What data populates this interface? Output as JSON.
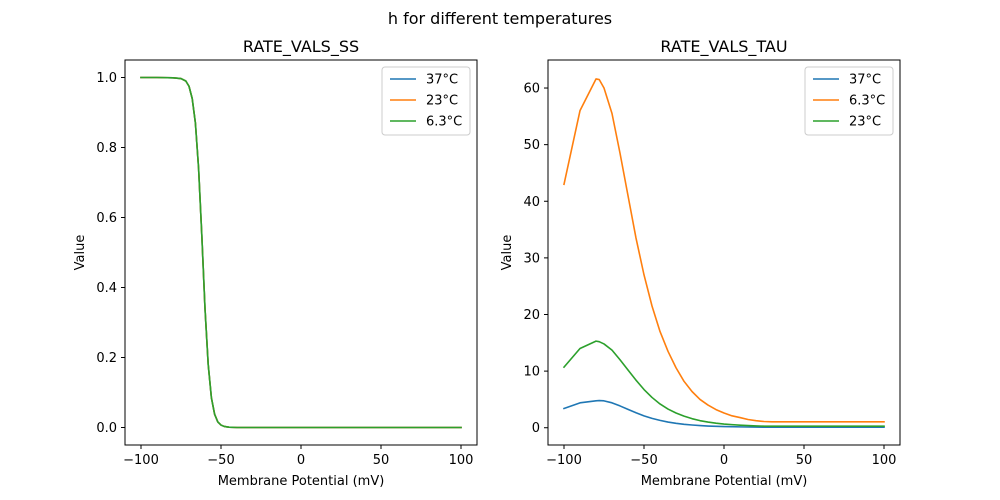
{
  "figure": {
    "suptitle": "h for different temperatures"
  },
  "colors": {
    "blue": "#1f77b4",
    "orange": "#ff7f0e",
    "green": "#2ca02c"
  },
  "chart_data": [
    {
      "type": "line",
      "title": "RATE_VALS_SS",
      "xlabel": "Membrane Potential (mV)",
      "ylabel": "Value",
      "xlim": [
        -110,
        110
      ],
      "ylim": [
        -0.05,
        1.05
      ],
      "xticks": [
        -100,
        -50,
        0,
        50,
        100
      ],
      "xticklabels": [
        "−100",
        "−50",
        "0",
        "50",
        "100"
      ],
      "yticks": [
        0.0,
        0.2,
        0.4,
        0.6,
        0.8,
        1.0
      ],
      "yticklabels": [
        "0.0",
        "0.2",
        "0.4",
        "0.6",
        "0.8",
        "1.0"
      ],
      "legend": "upper right",
      "grid": false,
      "series": [
        {
          "name": "37°C",
          "color": "#1f77b4",
          "x": [
            -100,
            -90,
            -80,
            -75,
            -72,
            -70,
            -68,
            -66,
            -64,
            -62,
            -60,
            -58,
            -56,
            -54,
            -52,
            -50,
            -48,
            -45,
            -40,
            -30,
            0,
            50,
            100
          ],
          "y": [
            1.0,
            1.0,
            0.999,
            0.997,
            0.99,
            0.975,
            0.94,
            0.87,
            0.74,
            0.55,
            0.34,
            0.18,
            0.085,
            0.038,
            0.016,
            0.007,
            0.003,
            0.001,
            0.0,
            0.0,
            0.0,
            0.0,
            0.0
          ]
        },
        {
          "name": "23°C",
          "color": "#ff7f0e",
          "x": [
            -100,
            -90,
            -80,
            -75,
            -72,
            -70,
            -68,
            -66,
            -64,
            -62,
            -60,
            -58,
            -56,
            -54,
            -52,
            -50,
            -48,
            -45,
            -40,
            -30,
            0,
            50,
            100
          ],
          "y": [
            1.0,
            1.0,
            0.999,
            0.997,
            0.99,
            0.975,
            0.94,
            0.87,
            0.74,
            0.55,
            0.34,
            0.18,
            0.085,
            0.038,
            0.016,
            0.007,
            0.003,
            0.001,
            0.0,
            0.0,
            0.0,
            0.0,
            0.0
          ]
        },
        {
          "name": "6.3°C",
          "color": "#2ca02c",
          "x": [
            -100,
            -90,
            -80,
            -75,
            -72,
            -70,
            -68,
            -66,
            -64,
            -62,
            -60,
            -58,
            -56,
            -54,
            -52,
            -50,
            -48,
            -45,
            -40,
            -30,
            0,
            50,
            100
          ],
          "y": [
            1.0,
            1.0,
            0.999,
            0.997,
            0.99,
            0.975,
            0.94,
            0.87,
            0.74,
            0.55,
            0.34,
            0.18,
            0.085,
            0.038,
            0.016,
            0.007,
            0.003,
            0.001,
            0.0,
            0.0,
            0.0,
            0.0,
            0.0
          ]
        }
      ]
    },
    {
      "type": "line",
      "title": "RATE_VALS_TAU",
      "xlabel": "Membrane Potential (mV)",
      "ylabel": "Value",
      "xlim": [
        -110,
        110
      ],
      "ylim": [
        -3.05,
        64.95
      ],
      "xticks": [
        -100,
        -50,
        0,
        50,
        100
      ],
      "xticklabels": [
        "−100",
        "−50",
        "0",
        "50",
        "100"
      ],
      "yticks": [
        0,
        10,
        20,
        30,
        40,
        50,
        60
      ],
      "yticklabels": [
        "0",
        "10",
        "20",
        "30",
        "40",
        "50",
        "60"
      ],
      "legend": "upper right",
      "grid": false,
      "series": [
        {
          "name": "37°C",
          "color": "#1f77b4",
          "x": [
            -100,
            -90,
            -80,
            -78,
            -75,
            -70,
            -65,
            -60,
            -55,
            -50,
            -45,
            -40,
            -35,
            -30,
            -25,
            -20,
            -15,
            -10,
            -5,
            0,
            5,
            10,
            15,
            20,
            25,
            30,
            40,
            50,
            60,
            70,
            80,
            90,
            100
          ],
          "y": [
            3.4,
            4.4,
            4.75,
            4.8,
            4.75,
            4.4,
            3.85,
            3.25,
            2.65,
            2.1,
            1.65,
            1.3,
            1.0,
            0.78,
            0.6,
            0.48,
            0.38,
            0.3,
            0.25,
            0.21,
            0.18,
            0.15,
            0.13,
            0.11,
            0.1,
            0.1,
            0.1,
            0.1,
            0.1,
            0.1,
            0.1,
            0.1,
            0.1
          ]
        },
        {
          "name": "6.3°C",
          "color": "#ff7f0e",
          "x": [
            -100,
            -90,
            -80,
            -78,
            -75,
            -70,
            -65,
            -60,
            -55,
            -50,
            -45,
            -40,
            -35,
            -30,
            -25,
            -20,
            -15,
            -10,
            -5,
            0,
            5,
            10,
            15,
            20,
            25,
            30,
            40,
            50,
            60,
            70,
            80,
            90,
            100
          ],
          "y": [
            43.0,
            56.0,
            61.6,
            61.5,
            60.0,
            55.5,
            48.5,
            41.0,
            33.5,
            27.0,
            21.5,
            17.0,
            13.5,
            10.6,
            8.2,
            6.4,
            5.0,
            4.0,
            3.2,
            2.6,
            2.1,
            1.8,
            1.45,
            1.25,
            1.1,
            1.05,
            1.05,
            1.05,
            1.05,
            1.05,
            1.05,
            1.05,
            1.05
          ]
        },
        {
          "name": "23°C",
          "color": "#2ca02c",
          "x": [
            -100,
            -90,
            -80,
            -78,
            -75,
            -70,
            -65,
            -60,
            -55,
            -50,
            -45,
            -40,
            -35,
            -30,
            -25,
            -20,
            -15,
            -10,
            -5,
            0,
            5,
            10,
            15,
            20,
            25,
            30,
            40,
            50,
            60,
            70,
            80,
            90,
            100
          ],
          "y": [
            10.7,
            14.0,
            15.3,
            15.2,
            14.8,
            13.7,
            12.0,
            10.2,
            8.4,
            6.75,
            5.35,
            4.2,
            3.3,
            2.6,
            2.05,
            1.6,
            1.25,
            1.0,
            0.8,
            0.65,
            0.55,
            0.45,
            0.38,
            0.32,
            0.28,
            0.27,
            0.27,
            0.27,
            0.27,
            0.27,
            0.27,
            0.27,
            0.27
          ]
        }
      ]
    }
  ]
}
